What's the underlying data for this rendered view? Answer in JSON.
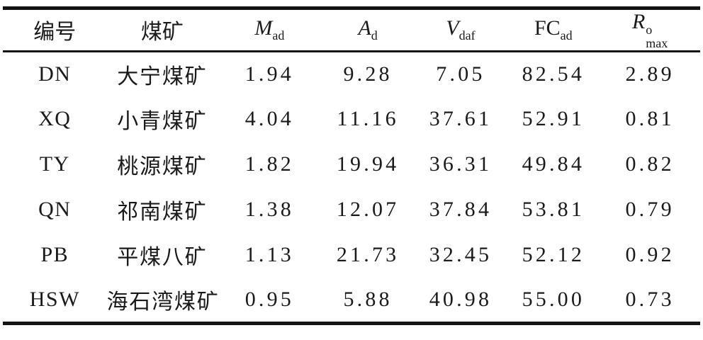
{
  "table": {
    "columns": [
      {
        "key": "id",
        "label": "编号"
      },
      {
        "key": "mine",
        "label": "煤矿"
      },
      {
        "key": "M_ad",
        "base": "M",
        "italic": true,
        "sub": "ad"
      },
      {
        "key": "A_d",
        "base": "A",
        "italic": true,
        "sub": "d"
      },
      {
        "key": "V_daf",
        "base": "V",
        "italic": true,
        "sub": "daf"
      },
      {
        "key": "FC_ad",
        "base": "FC",
        "italic": false,
        "sub": "ad"
      },
      {
        "key": "R_max",
        "base": "R",
        "italic": true,
        "sup": "o",
        "sub": "max"
      }
    ],
    "rows": [
      {
        "id": "DN",
        "mine": "大宁煤矿",
        "values": [
          "1.94",
          "9.28",
          "7.05",
          "82.54",
          "2.89"
        ]
      },
      {
        "id": "XQ",
        "mine": "小青煤矿",
        "values": [
          "4.04",
          "11.16",
          "37.61",
          "52.91",
          "0.81"
        ]
      },
      {
        "id": "TY",
        "mine": "桃源煤矿",
        "values": [
          "1.82",
          "19.94",
          "36.31",
          "49.84",
          "0.82"
        ]
      },
      {
        "id": "QN",
        "mine": "祁南煤矿",
        "values": [
          "1.38",
          "12.07",
          "37.84",
          "53.81",
          "0.79"
        ]
      },
      {
        "id": "PB",
        "mine": "平煤八矿",
        "values": [
          "1.13",
          "21.73",
          "32.45",
          "52.12",
          "0.92"
        ]
      },
      {
        "id": "HSW",
        "mine": "海石湾煤矿",
        "values": [
          "0.95",
          "5.88",
          "40.98",
          "55.00",
          "0.73"
        ]
      }
    ]
  },
  "colors": {
    "rule": "#141414",
    "text": "#1a1a1a",
    "background": "#ffffff"
  }
}
